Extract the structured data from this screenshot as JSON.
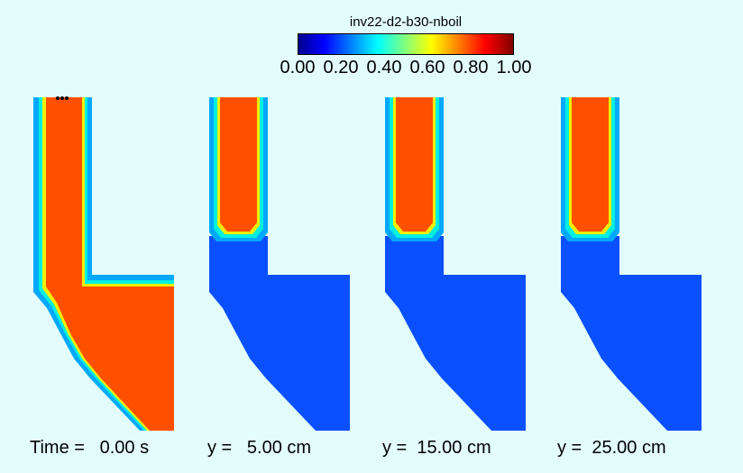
{
  "title": "inv22-d2-b30-nboil",
  "colorbar": {
    "ticks": [
      "0.00",
      "0.20",
      "0.40",
      "0.60",
      "0.80",
      "1.00"
    ],
    "colors": [
      "#00008f",
      "#0000ff",
      "#00ffff",
      "#ffff00",
      "#ff0000",
      "#800000"
    ]
  },
  "colors": {
    "background": "#e3fdfd",
    "hot": "#ff5000",
    "cold": "#0a50ff",
    "rim_outer": "#00a8ff",
    "rim_mid": "#00f0e0",
    "rim_inner": "#f0f000"
  },
  "panels": [
    {
      "caption": "Time =   0.00 s",
      "level": 1.0
    },
    {
      "caption": "y =   5.00 cm",
      "level": 0.0
    },
    {
      "caption": "y =  15.00 cm",
      "level": 0.0
    },
    {
      "caption": "y =  25.00 cm",
      "level": 0.0
    }
  ]
}
